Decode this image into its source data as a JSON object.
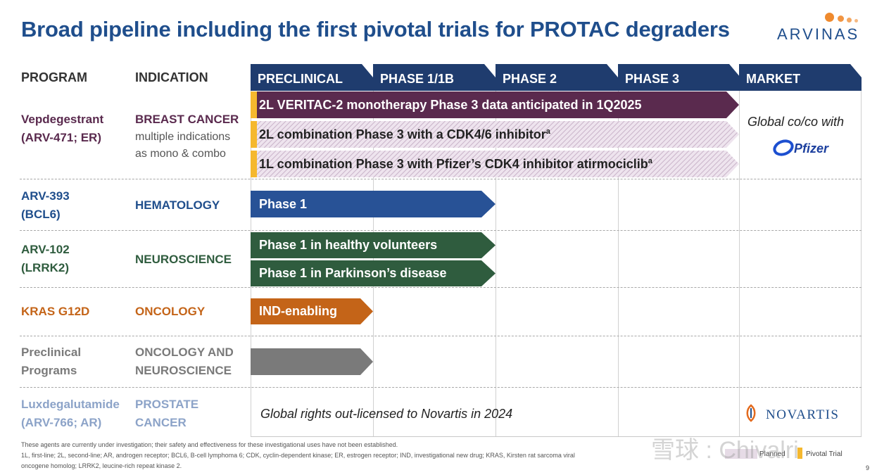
{
  "title": "Broad pipeline including the first pivotal trials for PROTAC degraders",
  "logo": {
    "text": "ARVINAS"
  },
  "columns": {
    "program": "PROGRAM",
    "indication": "INDICATION",
    "phases": [
      "PRECLINICAL",
      "PHASE 1/1B",
      "PHASE 2",
      "PHASE 3",
      "MARKET"
    ]
  },
  "rows": {
    "vep": {
      "program_line1": "Vepdegestrant",
      "program_line2": "(ARV-471; ER)",
      "indication_main": "BREAST CANCER",
      "indication_sub1": "multiple indications",
      "indication_sub2": "as mono & combo",
      "bar1": "2L VERITAC-2 monotherapy Phase 3 data anticipated in 1Q2025",
      "bar2": "2L combination Phase 3 with a CDK4/6 inhibitor",
      "bar2_sup": "a",
      "bar3": "1L combination Phase 3 with Pfizer’s CDK4 inhibitor atirmociclib",
      "bar3_sup": "a",
      "market_note": "Global co/co with",
      "partner": "Pfizer"
    },
    "arv393": {
      "program_line1": "ARV-393",
      "program_line2": "(BCL6)",
      "indication": "HEMATOLOGY",
      "bar": "Phase 1"
    },
    "arv102": {
      "program_line1": "ARV-102",
      "program_line2": "(LRRK2)",
      "indication": "NEUROSCIENCE",
      "bar1": "Phase 1 in healthy volunteers",
      "bar2": "Phase 1 in Parkinson’s disease"
    },
    "kras": {
      "program": "KRAS G12D",
      "indication": "ONCOLOGY",
      "bar": "IND-enabling"
    },
    "preclin": {
      "program_line1": "Preclinical",
      "program_line2": "Programs",
      "indication_line1": "ONCOLOGY AND",
      "indication_line2": "NEUROSCIENCE"
    },
    "luxde": {
      "program_line1": "Luxdegalutamide",
      "program_line2": "(ARV-766; AR)",
      "indication_line1": "PROSTATE",
      "indication_line2": "CANCER",
      "note": "Global rights out-licensed to Novartis in 2024",
      "partner": "NOVARTIS"
    }
  },
  "footnotes": {
    "line1": "These agents are currently under investigation; their safety and effectiveness for these investigational uses have not been established.",
    "line2": "1L, first-line; 2L, second-line; AR, androgen receptor; BCL6, B-cell lymphoma 6; CDK, cyclin-dependent kinase; ER, estrogen receptor; IND, investigational new drug; KRAS, Kirsten rat sarcoma viral",
    "line3": "oncogene homolog; LRRK2, leucine-rich repeat kinase 2."
  },
  "legend": {
    "planned": "Planned",
    "pivotal": "Pivotal Trial"
  },
  "watermark": "雪球 : Chivalri",
  "page_number": "9",
  "colors": {
    "title": "#1f4e8c",
    "header": "#1f3c6e",
    "vep": "#5a2a4e",
    "planned_hatch": "#dcd0dc",
    "pivotal": "#f5b82e",
    "hematology": "#285296",
    "neuroscience": "#2f5c3e",
    "oncology": "#c46418",
    "preclinical": "#7a7a7a",
    "prostate": "#8ca3c8"
  }
}
